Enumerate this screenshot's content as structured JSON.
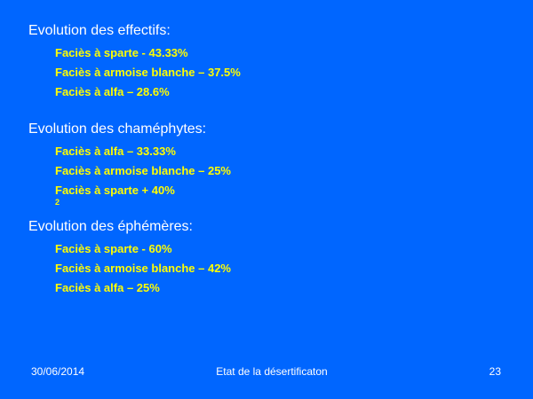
{
  "sections": [
    {
      "heading": "Evolution des effectifs:",
      "items": [
        "Faciès à sparte - 43.33%",
        "Faciès à armoise blanche – 37.5%",
        "Faciès à alfa – 28.6%"
      ]
    },
    {
      "heading": "Evolution des chaméphytes:",
      "items": [
        "Faciès à alfa – 33.33%",
        "Faciès à armoise blanche – 25%",
        "Faciès à sparte + 40%"
      ]
    },
    {
      "heading": "Evolution des éphémères:",
      "items": [
        "Faciès à sparte - 60%",
        "Faciès à armoise blanche – 42%",
        "Faciès à alfa – 25%"
      ]
    }
  ],
  "stray_mark": "2",
  "footer": {
    "date": "30/06/2014",
    "title": "Etat de la désertificaton",
    "page": "23"
  },
  "colors": {
    "background": "#0066ff",
    "heading": "#ffffff",
    "item": "#ffff00"
  }
}
